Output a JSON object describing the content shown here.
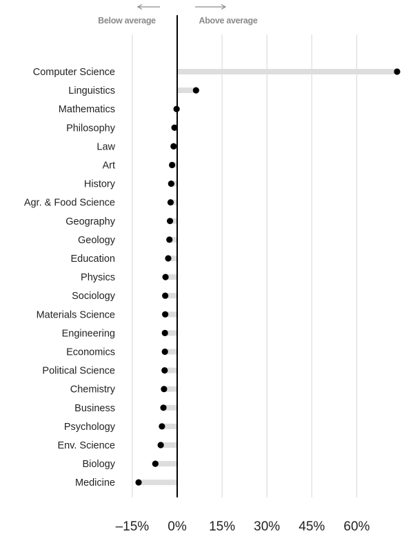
{
  "chart_data": {
    "type": "dot",
    "title": "",
    "xlabel": "",
    "ylabel": "",
    "xlim": [
      -15,
      70
    ],
    "x_ticks": [
      -15,
      0,
      15,
      30,
      45,
      60
    ],
    "x_tick_labels": [
      "–15%",
      "0%",
      "15%",
      "30%",
      "45%",
      "60%"
    ],
    "grid": true,
    "annotations": {
      "below_label": "Below average",
      "above_label": "Above average"
    },
    "categories": [
      "Computer Science",
      "Linguistics",
      "Mathematics",
      "Philosophy",
      "Law",
      "Art",
      "History",
      "Agr. & Food Science",
      "Geography",
      "Geology",
      "Education",
      "Physics",
      "Sociology",
      "Materials Science",
      "Engineering",
      "Economics",
      "Political Science",
      "Chemistry",
      "Business",
      "Psychology",
      "Env. Science",
      "Biology",
      "Medicine"
    ],
    "values": [
      73.5,
      6.3,
      -0.2,
      -0.9,
      -1.2,
      -1.7,
      -2.0,
      -2.2,
      -2.4,
      -2.6,
      -3.0,
      -3.9,
      -4.0,
      -4.0,
      -4.1,
      -4.1,
      -4.2,
      -4.4,
      -4.6,
      -5.1,
      -5.5,
      -7.3,
      -12.9
    ],
    "colors": {
      "dot": "#000000",
      "bar": "#dddddd",
      "grid": "#dcdcdc",
      "zero_line": "#000000",
      "arrow": "#8a8a8a"
    }
  }
}
